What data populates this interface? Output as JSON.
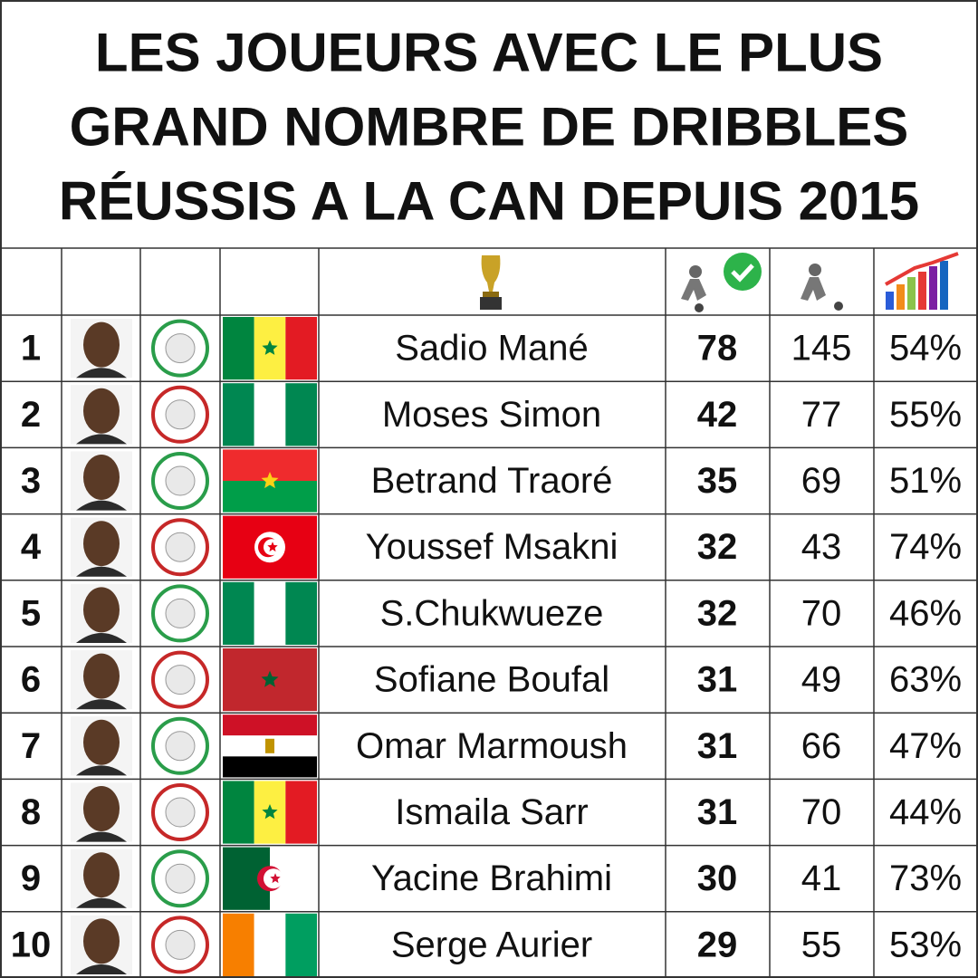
{
  "header": {
    "title_lines": [
      "LES JOUEURS AVEC LE PLUS",
      "GRAND NOMBRE DE DRIBBLES",
      "RÉUSSIS A LA CAN DEPUIS 2015"
    ]
  },
  "table": {
    "rows": [
      [
        "1",
        "Sadio Mané",
        "78",
        "145",
        "54%"
      ],
      [
        "2",
        "Moses Simon",
        "42",
        "77",
        "55%"
      ],
      [
        "3",
        "Betrand Traoré",
        "35",
        "69",
        "51%"
      ],
      [
        "4",
        "Youssef Msakni",
        "32",
        "43",
        "74%"
      ],
      [
        "5",
        "S.Chukwueze",
        "32",
        "70",
        "46%"
      ],
      [
        "6",
        "Sofiane Boufal",
        "31",
        "49",
        "63%"
      ],
      [
        "7",
        "Omar Marmoush",
        "31",
        "66",
        "47%"
      ],
      [
        "8",
        "Ismaila Sarr",
        "31",
        "70",
        "44%"
      ],
      [
        "9",
        "Yacine Brahimi",
        "30",
        "41",
        "73%"
      ],
      [
        "10",
        "Serge Aurier",
        "29",
        "55",
        "53%"
      ]
    ]
  }
}
